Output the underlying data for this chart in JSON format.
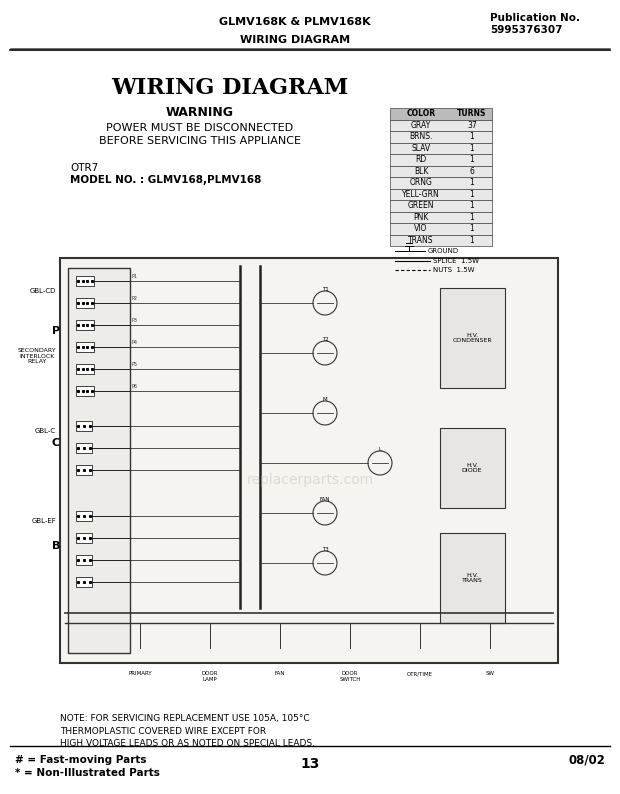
{
  "bg_color": "#ffffff",
  "page_bg": "#f0ede8",
  "header_left": "GLMV168K & PLMV168K",
  "header_right_line1": "Publication No.",
  "header_right_line2": "5995376307",
  "header_center": "WIRING DIAGRAM",
  "title": "WIRING DIAGRAM",
  "warning_title": "WARNING",
  "warning_line1": "POWER MUST BE DISCONNECTED",
  "warning_line2": "BEFORE SERVICING THIS APPLIANCE",
  "otr_line": "OTR7",
  "model_line": "MODEL NO. : GLMV168,PLMV168",
  "note_line1": "NOTE: FOR SERVICING REPLACEMENT USE 105A, 105°C",
  "note_line2": "THERMOPLASTIC COVERED WIRE EXCEPT FOR",
  "note_line3": "HIGH VOLTAGE LEADS OR AS NOTED ON SPECIAL LEADS.",
  "footer_left1": "# = Fast-moving Parts",
  "footer_left2": "* = Non-Illustrated Parts",
  "footer_center": "13",
  "footer_right": "08/02",
  "table_rows": [
    [
      "COLOR",
      "TURNS"
    ],
    [
      "GRAY",
      "37"
    ],
    [
      "BRNS.",
      "1"
    ],
    [
      "SLAV",
      "1"
    ],
    [
      "RD",
      "1"
    ],
    [
      "BLK",
      "6"
    ],
    [
      "ORNG",
      "1"
    ],
    [
      "YELL-GRN",
      "1"
    ],
    [
      "GREEN",
      "1"
    ],
    [
      "PNK",
      "1"
    ],
    [
      "VIO",
      "1"
    ],
    [
      "TRANS",
      "1"
    ]
  ]
}
